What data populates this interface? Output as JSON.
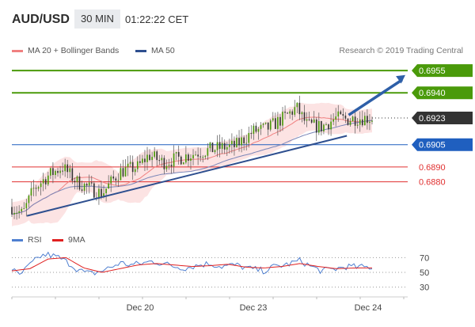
{
  "header": {
    "symbol": "AUD/USD",
    "timeframe": "30 MIN",
    "time": "01:22:22 CET"
  },
  "legend": {
    "items": [
      {
        "label": "MA 20 + Bollinger Bands",
        "color": "#f08080"
      },
      {
        "label": "MA 50",
        "color": "#2e4f8f"
      }
    ],
    "credit": "Research © 2019 Trading Central"
  },
  "rsi_legend": {
    "items": [
      {
        "label": "RSI",
        "color": "#4f7fd0"
      },
      {
        "label": "9MA",
        "color": "#e02020"
      }
    ]
  },
  "chart_data": [
    {
      "type": "candlestick",
      "instrument": "AUD/USD",
      "interval": "30 MIN",
      "ylim": [
        0.6852,
        0.6962
      ],
      "x_ticks": [
        "Dec 20",
        "Dec 23",
        "Dec 24"
      ],
      "price_levels": [
        {
          "label": "0.6955",
          "value": 0.6955,
          "color": "#4a9a0a",
          "style": "solid",
          "role": "target-2"
        },
        {
          "label": "0.6940",
          "value": 0.694,
          "color": "#4a9a0a",
          "style": "solid",
          "role": "target-1"
        },
        {
          "label": "0.6923",
          "value": 0.6923,
          "color": "#333333",
          "style": "dotted",
          "role": "current-price"
        },
        {
          "label": "0.6905",
          "value": 0.6905,
          "color": "#1f5fbf",
          "style": "solid",
          "role": "pivot"
        },
        {
          "label": "0.6890",
          "value": 0.689,
          "color": "#e03030",
          "style": "solid",
          "role": "support-1"
        },
        {
          "label": "0.6880",
          "value": 0.688,
          "color": "#e03030",
          "style": "solid",
          "role": "support-2"
        }
      ],
      "trendline": {
        "start": [
          0.02,
          0.6857
        ],
        "end": [
          0.93,
          0.6911
        ]
      },
      "arrow": {
        "from": [
          0.935,
          0.6925
        ],
        "to": [
          1.0,
          0.6952
        ]
      },
      "price_anchors": [
        [
          0.0,
          0.6863
        ],
        [
          0.03,
          0.6858
        ],
        [
          0.06,
          0.6875
        ],
        [
          0.1,
          0.6884
        ],
        [
          0.14,
          0.689
        ],
        [
          0.18,
          0.688
        ],
        [
          0.22,
          0.6875
        ],
        [
          0.25,
          0.6872
        ],
        [
          0.3,
          0.6887
        ],
        [
          0.35,
          0.689
        ],
        [
          0.38,
          0.6898
        ],
        [
          0.42,
          0.6893
        ],
        [
          0.45,
          0.6895
        ],
        [
          0.52,
          0.69
        ],
        [
          0.58,
          0.6903
        ],
        [
          0.62,
          0.6904
        ],
        [
          0.67,
          0.6914
        ],
        [
          0.71,
          0.6916
        ],
        [
          0.76,
          0.6924
        ],
        [
          0.79,
          0.693
        ],
        [
          0.82,
          0.6918
        ],
        [
          0.86,
          0.6917
        ],
        [
          0.9,
          0.6923
        ],
        [
          0.93,
          0.6922
        ],
        [
          0.96,
          0.6923
        ]
      ]
    },
    {
      "type": "line",
      "indicator": "RSI",
      "ylim": [
        20,
        80
      ],
      "y_ticks": [
        70,
        50,
        30
      ],
      "series": [
        {
          "name": "RSI",
          "color": "#4f7fd0",
          "x": [
            0.0,
            0.02,
            0.05,
            0.08,
            0.1,
            0.13,
            0.16,
            0.18,
            0.2,
            0.22,
            0.25,
            0.28,
            0.3,
            0.33,
            0.36,
            0.39,
            0.42,
            0.45,
            0.48,
            0.52,
            0.55,
            0.58,
            0.62,
            0.66,
            0.7,
            0.73,
            0.76,
            0.8,
            0.83,
            0.86,
            0.9,
            0.93,
            0.96
          ],
          "values": [
            55,
            45,
            60,
            72,
            74,
            70,
            62,
            55,
            50,
            48,
            52,
            58,
            63,
            60,
            62,
            65,
            62,
            58,
            56,
            60,
            62,
            58,
            60,
            55,
            52,
            58,
            60,
            66,
            58,
            52,
            55,
            58,
            57
          ]
        },
        {
          "name": "9MA",
          "color": "#e02020",
          "x": [
            0.0,
            0.05,
            0.1,
            0.15,
            0.2,
            0.25,
            0.3,
            0.35,
            0.4,
            0.45,
            0.5,
            0.55,
            0.6,
            0.65,
            0.7,
            0.75,
            0.8,
            0.85,
            0.9,
            0.96
          ],
          "values": [
            52,
            55,
            68,
            70,
            56,
            50,
            55,
            60,
            62,
            60,
            58,
            59,
            61,
            57,
            56,
            58,
            62,
            58,
            55,
            56
          ]
        }
      ]
    }
  ]
}
